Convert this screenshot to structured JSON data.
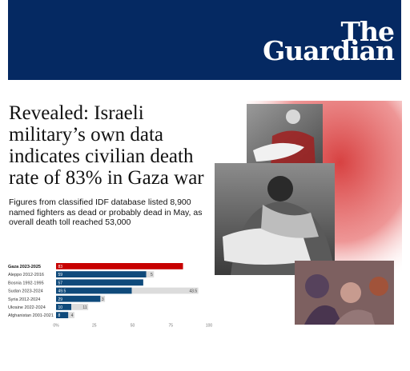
{
  "masthead": {
    "logo_line1": "The",
    "logo_line2": "Guardian",
    "background_color": "#052962"
  },
  "article": {
    "headline": "Revealed: Israeli military’s own data indicates civilian death rate of 83% in Gaza war",
    "standfirst": "Figures from classified IDF database listed 8,900 named fighters as dead or probably dead in May, as overall death toll reached 53,000"
  },
  "colors": {
    "highlight_bar": "#c70000",
    "standard_bar": "#0f4a7b",
    "remainder_bar": "#dcdcdc"
  },
  "chart_data": {
    "type": "bar",
    "orientation": "horizontal",
    "stacked": true,
    "title": "",
    "xlabel": "",
    "ylabel": "",
    "xlim": [
      0,
      100
    ],
    "x_ticks": [
      "0%",
      "25",
      "50",
      "75",
      "100"
    ],
    "tick_values": [
      0,
      25,
      50,
      75,
      100
    ],
    "grid": false,
    "legend": "none",
    "categories": [
      "Gaza 2023-2025",
      "Aleppo 2012-2016",
      "Bosnia 1992-1995",
      "Sudan 2023-2024",
      "Syria 2012-2024",
      "Ukraine 2022-2024",
      "Afghanistan 2001-2021"
    ],
    "highlight_index": 0,
    "series": [
      {
        "values": [
          83,
          59,
          57,
          49.5,
          29,
          10,
          8
        ],
        "labels": [
          "83",
          "59",
          "57",
          "49.5",
          "29",
          "10",
          "8"
        ]
      },
      {
        "values": [
          0,
          5,
          0,
          43.5,
          3,
          11,
          4
        ],
        "labels": [
          "",
          "5",
          "",
          "43.5",
          "3",
          "11",
          "4"
        ]
      }
    ]
  }
}
